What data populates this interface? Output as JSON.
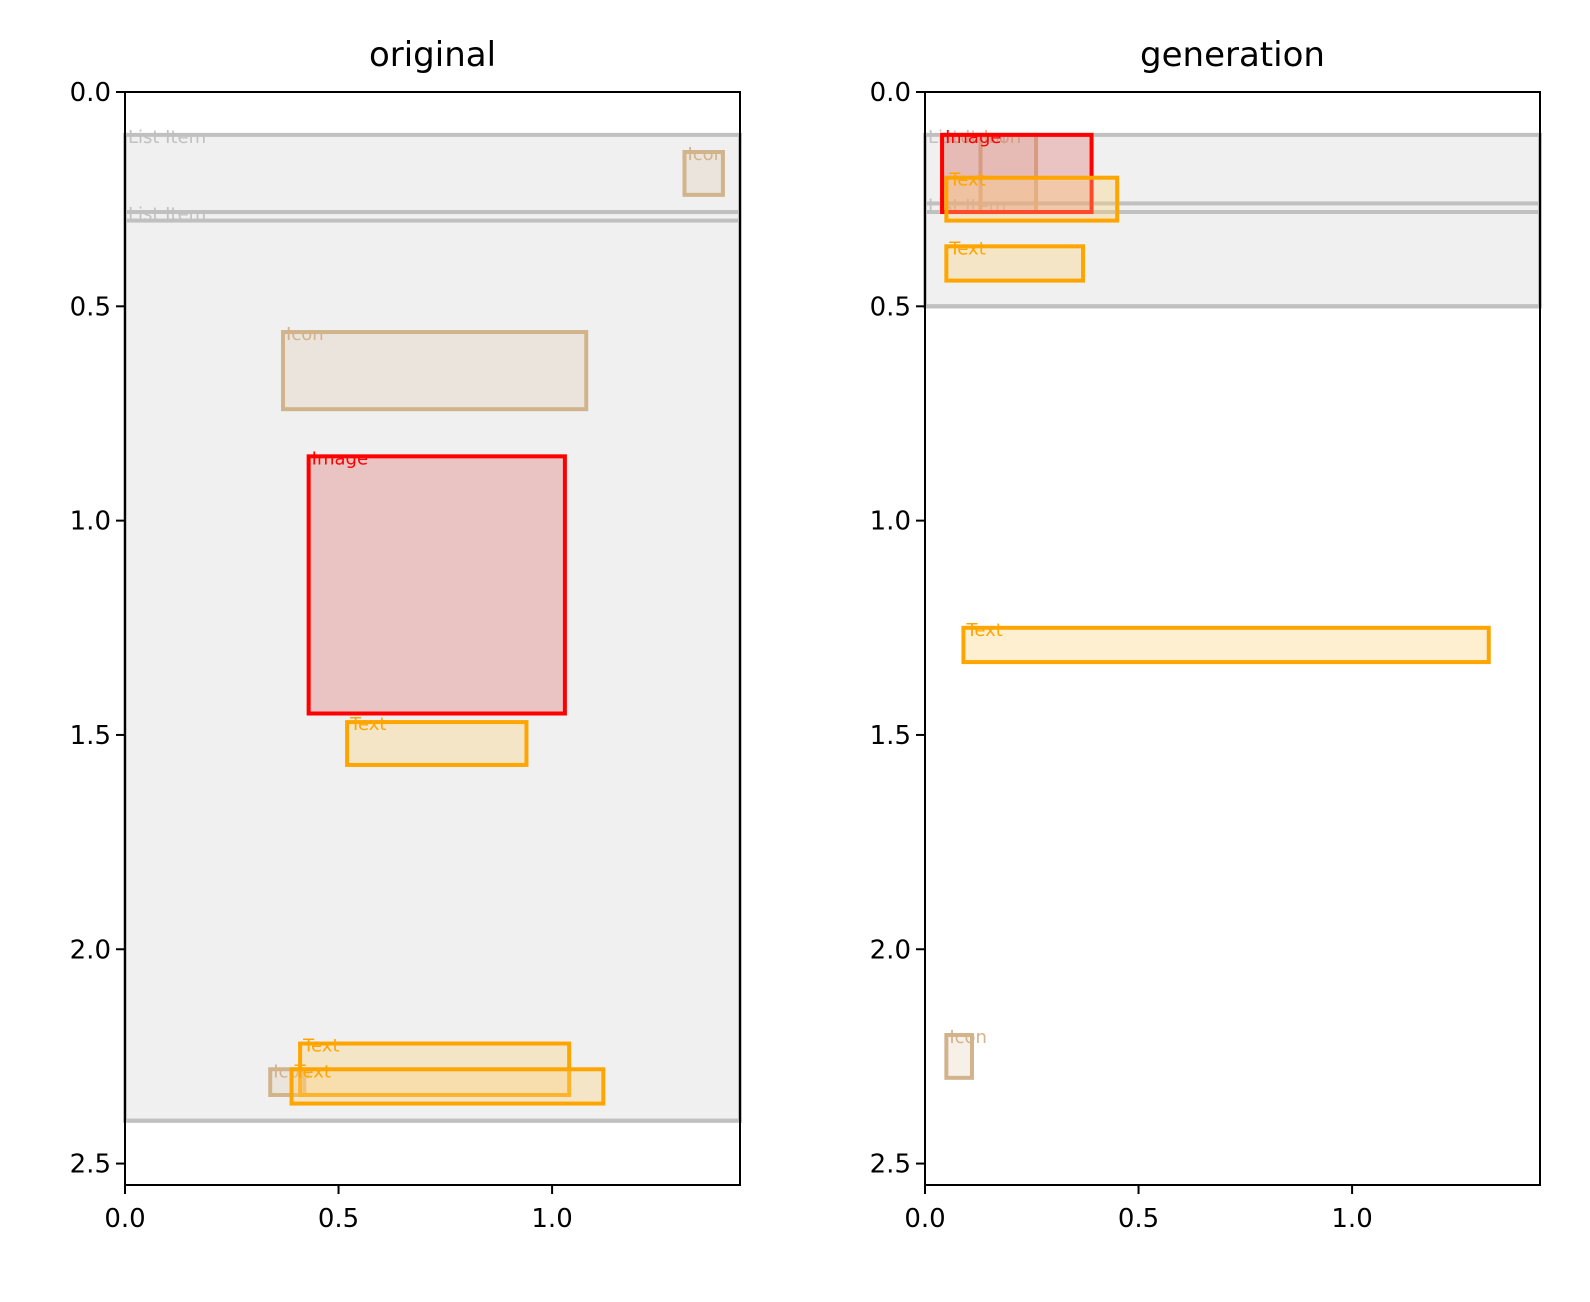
{
  "chart_data": [
    {
      "type": "bounding-box-layout",
      "title": "original",
      "xlim": [
        0,
        1.44
      ],
      "ylim": [
        2.55,
        0.0
      ],
      "y_inverted": true,
      "xticks": [
        0.0,
        0.5,
        1.0
      ],
      "xtick_labels": [
        "0.0",
        "0.5",
        "1.0"
      ],
      "yticks": [
        0.0,
        0.5,
        1.0,
        1.5,
        2.0,
        2.5
      ],
      "ytick_labels": [
        "0.0",
        "0.5",
        "1.0",
        "1.5",
        "2.0",
        "2.5"
      ],
      "background_region": {
        "x0": 0.0,
        "y0": 0.1,
        "x1": 1.44,
        "y1": 2.4
      },
      "boxes": [
        {
          "category": "List Item",
          "label": "List Item",
          "x0": 0.0,
          "y0": 0.1,
          "x1": 1.44,
          "y1": 0.28
        },
        {
          "category": "List Item",
          "label": "List Item",
          "x0": 0.0,
          "y0": 0.28,
          "x1": 1.44,
          "y1": 2.4
        },
        {
          "category": "List Item",
          "label": "",
          "x0": 0.0,
          "y0": 0.3,
          "x1": 1.44,
          "y1": 2.4
        },
        {
          "category": "Icon",
          "label": "Icon",
          "x0": 1.31,
          "y0": 0.14,
          "x1": 1.4,
          "y1": 0.24
        },
        {
          "category": "Icon",
          "label": "Icon",
          "x0": 0.37,
          "y0": 0.56,
          "x1": 1.08,
          "y1": 0.74
        },
        {
          "category": "Image",
          "label": "Image",
          "x0": 0.43,
          "y0": 0.85,
          "x1": 1.03,
          "y1": 1.45
        },
        {
          "category": "Text",
          "label": "Text",
          "x0": 0.52,
          "y0": 1.47,
          "x1": 0.94,
          "y1": 1.57
        },
        {
          "category": "Icon",
          "label": "Icon",
          "x0": 0.34,
          "y0": 2.28,
          "x1": 0.42,
          "y1": 2.34
        },
        {
          "category": "Text",
          "label": "Text",
          "x0": 0.41,
          "y0": 2.22,
          "x1": 1.04,
          "y1": 2.34
        },
        {
          "category": "Text",
          "label": "Text",
          "x0": 0.39,
          "y0": 2.28,
          "x1": 1.12,
          "y1": 2.36
        }
      ]
    },
    {
      "type": "bounding-box-layout",
      "title": "generation",
      "xlim": [
        0,
        1.44
      ],
      "ylim": [
        2.55,
        0.0
      ],
      "y_inverted": true,
      "xticks": [
        0.0,
        0.5,
        1.0
      ],
      "xtick_labels": [
        "0.0",
        "0.5",
        "1.0"
      ],
      "yticks": [
        0.0,
        0.5,
        1.0,
        1.5,
        2.0,
        2.5
      ],
      "ytick_labels": [
        "0.0",
        "0.5",
        "1.0",
        "1.5",
        "2.0",
        "2.5"
      ],
      "background_region": {
        "x0": 0.0,
        "y0": 0.1,
        "x1": 1.44,
        "y1": 0.5
      },
      "boxes": [
        {
          "category": "List Item",
          "label": "List Item",
          "x0": 0.0,
          "y0": 0.1,
          "x1": 1.44,
          "y1": 0.5
        },
        {
          "category": "List Item",
          "label": "List Item",
          "x0": 0.0,
          "y0": 0.26,
          "x1": 1.44,
          "y1": 0.5
        },
        {
          "category": "List Item",
          "label": "",
          "x0": 0.0,
          "y0": 0.28,
          "x1": 1.44,
          "y1": 0.5
        },
        {
          "category": "Icon",
          "label": "Icon",
          "x0": 0.04,
          "y0": 0.1,
          "x1": 0.13,
          "y1": 0.28
        },
        {
          "category": "Icon",
          "label": "Icon",
          "x0": 0.13,
          "y0": 0.1,
          "x1": 0.26,
          "y1": 0.28
        },
        {
          "category": "Image",
          "label": "Image",
          "x0": 0.04,
          "y0": 0.1,
          "x1": 0.39,
          "y1": 0.28
        },
        {
          "category": "Text",
          "label": "Text",
          "x0": 0.05,
          "y0": 0.2,
          "x1": 0.45,
          "y1": 0.3
        },
        {
          "category": "Text",
          "label": "Text",
          "x0": 0.05,
          "y0": 0.36,
          "x1": 0.37,
          "y1": 0.44
        },
        {
          "category": "Text",
          "label": "Text",
          "x0": 0.09,
          "y0": 1.25,
          "x1": 1.32,
          "y1": 1.33
        },
        {
          "category": "Icon",
          "label": "Icon",
          "x0": 0.05,
          "y0": 2.2,
          "x1": 0.11,
          "y1": 2.3
        }
      ]
    }
  ],
  "colors": {
    "List Item": {
      "stroke": "#c0c0c0",
      "fill": "#f0f0f0",
      "fill_opacity": 0.0
    },
    "Icon": {
      "stroke": "#d2b48c",
      "fill": "#d2b48c",
      "fill_opacity": 0.2
    },
    "Image": {
      "stroke": "#ff0000",
      "fill": "#e07070",
      "fill_opacity": 0.35
    },
    "Text": {
      "stroke": "#ffa500",
      "fill": "#ffd27a",
      "fill_opacity": 0.35
    },
    "background_region": "#f0f0f0"
  }
}
